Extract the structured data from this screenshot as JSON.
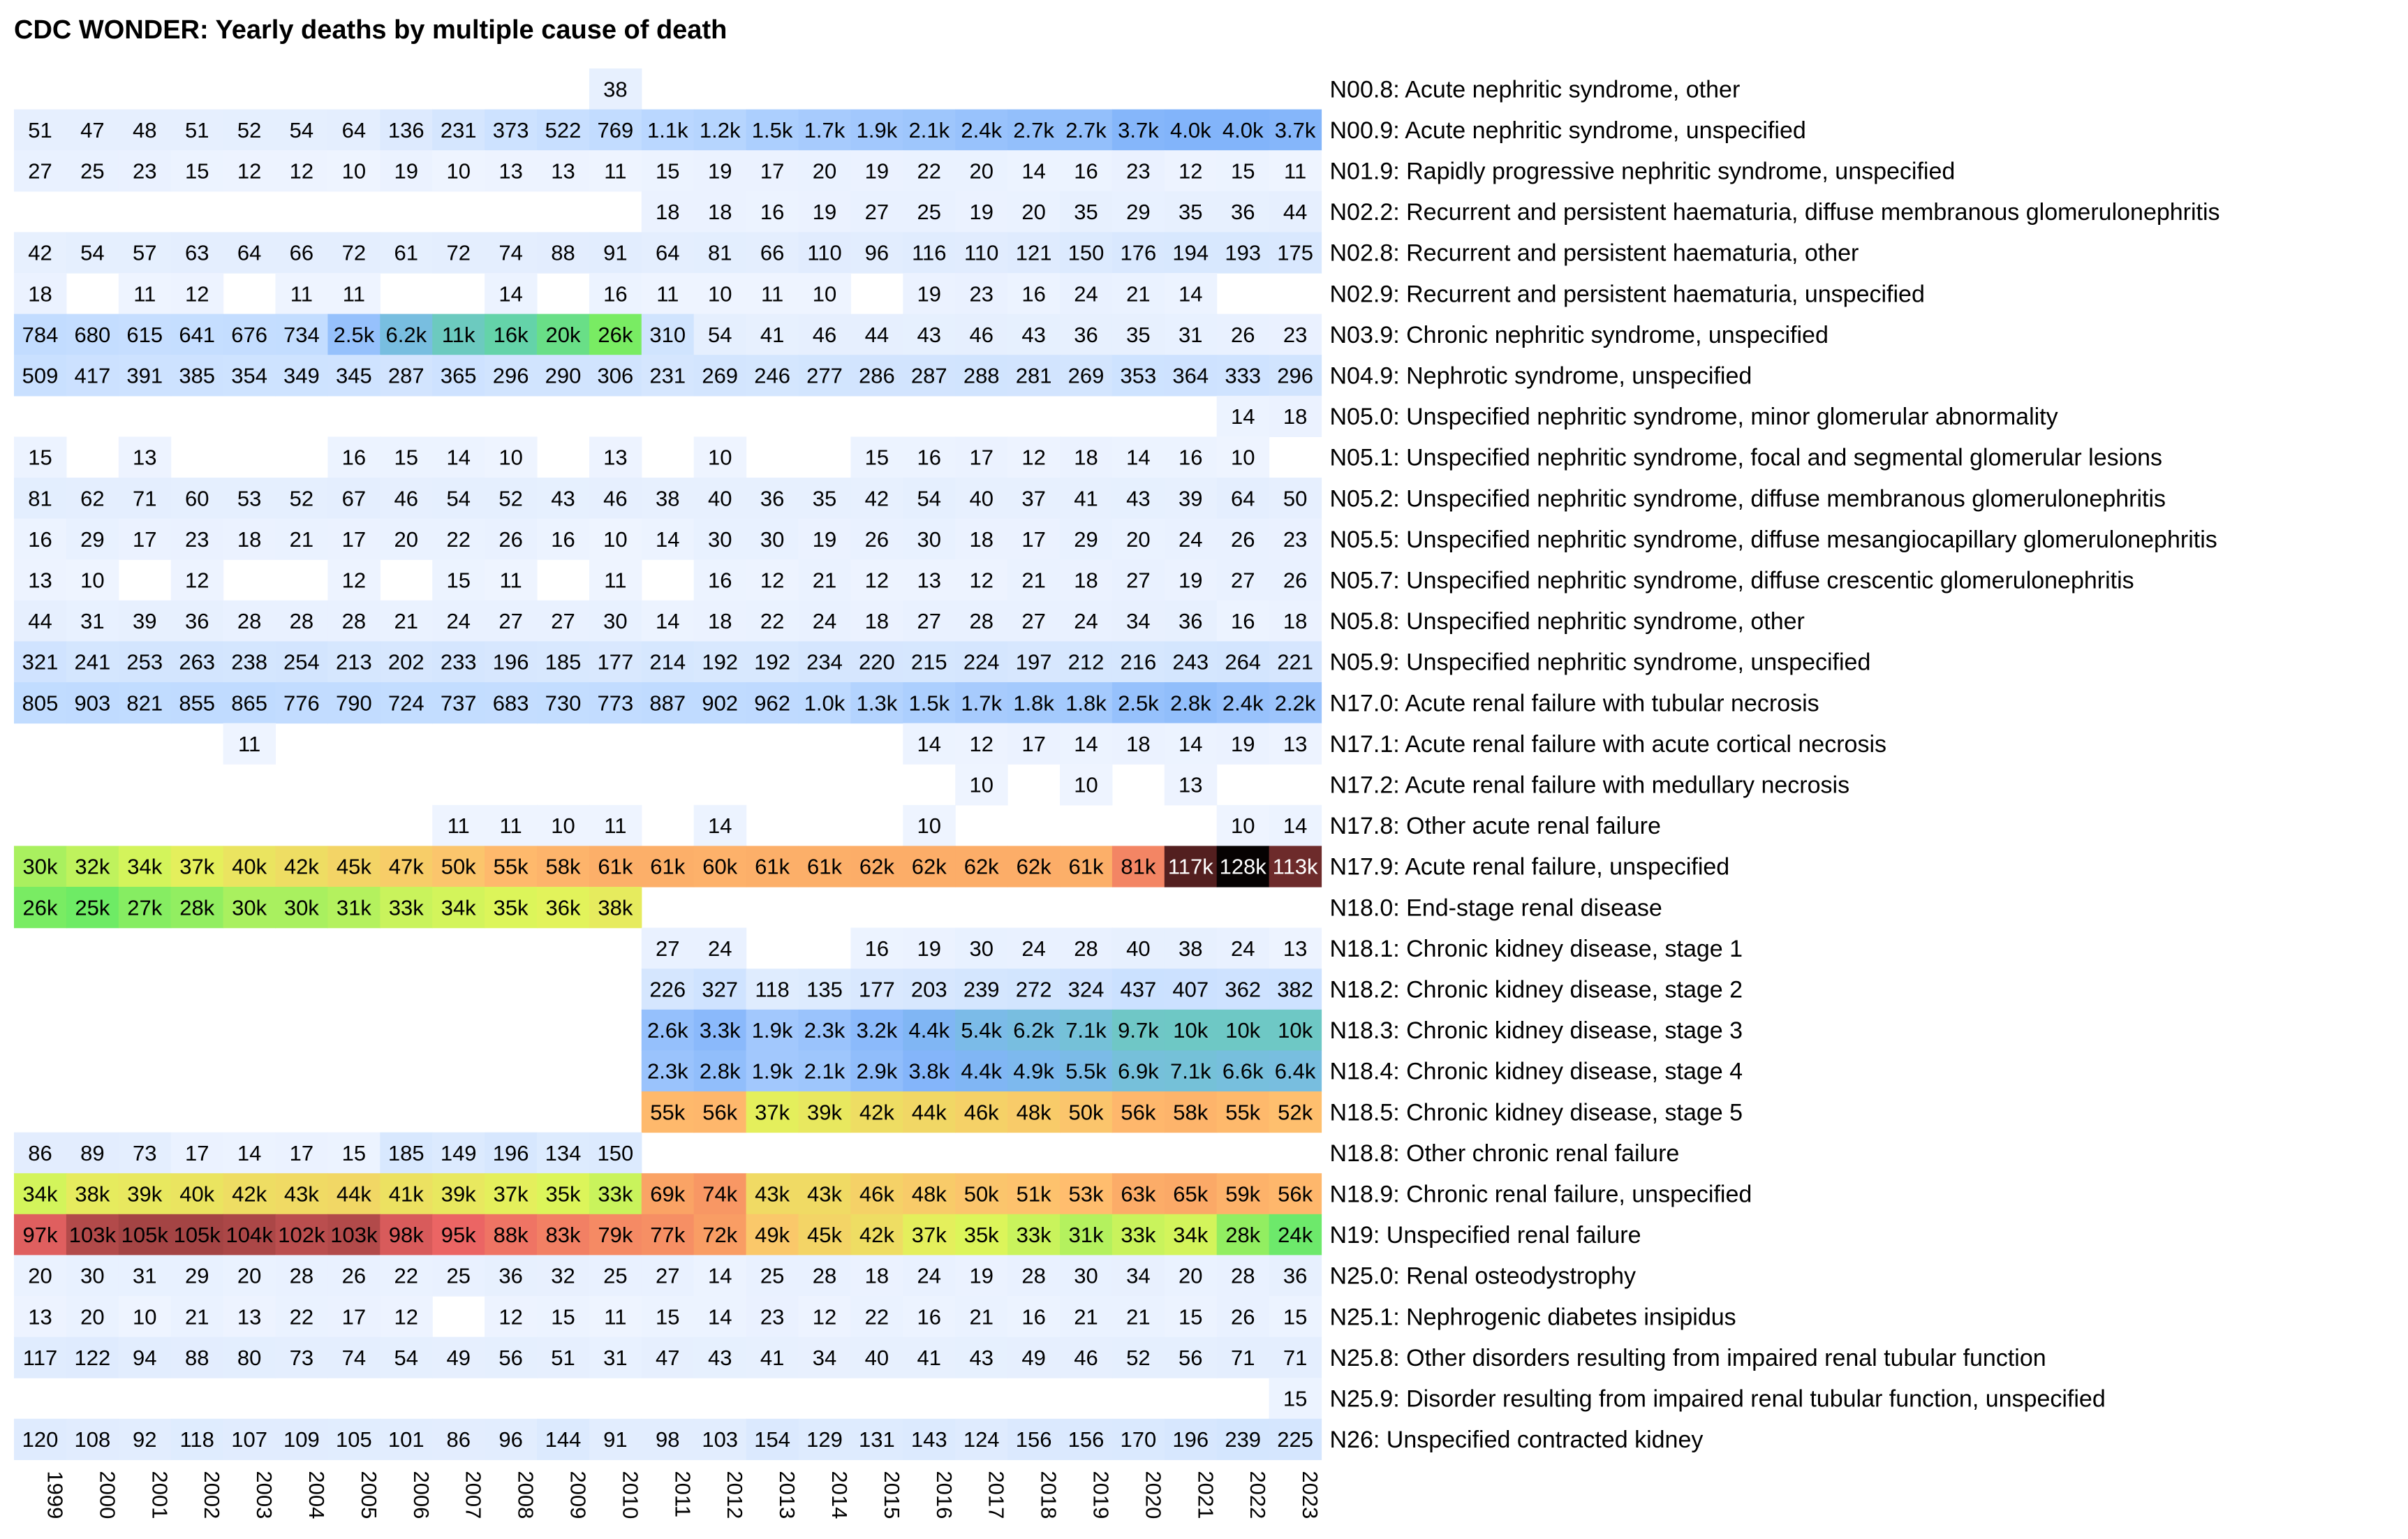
{
  "chart_data": {
    "type": "heatmap",
    "title": "CDC WONDER: Yearly deaths by multiple cause of death",
    "years": [
      1999,
      2000,
      2001,
      2002,
      2003,
      2004,
      2005,
      2006,
      2007,
      2008,
      2009,
      2010,
      2011,
      2012,
      2013,
      2014,
      2015,
      2016,
      2017,
      2018,
      2019,
      2020,
      2021,
      2022,
      2023
    ],
    "rows": [
      {
        "label": "N00.8: Acute nephritic syndrome, other",
        "values": [
          null,
          null,
          null,
          null,
          null,
          null,
          null,
          null,
          null,
          null,
          null,
          38,
          null,
          null,
          null,
          null,
          null,
          null,
          null,
          null,
          null,
          null,
          null,
          null,
          null
        ]
      },
      {
        "label": "N00.9: Acute nephritic syndrome, unspecified",
        "values": [
          51,
          47,
          48,
          51,
          52,
          54,
          64,
          136,
          231,
          373,
          522,
          769,
          1100,
          1200,
          1500,
          1700,
          1900,
          2100,
          2400,
          2700,
          2700,
          3700,
          4000,
          4000,
          3700
        ]
      },
      {
        "label": "N01.9: Rapidly progressive nephritic syndrome, unspecified",
        "values": [
          27,
          25,
          23,
          15,
          12,
          12,
          10,
          19,
          10,
          13,
          13,
          11,
          15,
          19,
          17,
          20,
          19,
          22,
          20,
          14,
          16,
          23,
          12,
          15,
          11
        ]
      },
      {
        "label": "N02.2: Recurrent and persistent haematuria, diffuse membranous glomerulonephritis",
        "values": [
          null,
          null,
          null,
          null,
          null,
          null,
          null,
          null,
          null,
          null,
          null,
          null,
          18,
          18,
          16,
          19,
          27,
          25,
          19,
          20,
          35,
          29,
          35,
          36,
          44
        ]
      },
      {
        "label": "N02.8: Recurrent and persistent haematuria, other",
        "values": [
          42,
          54,
          57,
          63,
          64,
          66,
          72,
          61,
          72,
          74,
          88,
          91,
          64,
          81,
          66,
          110,
          96,
          116,
          110,
          121,
          150,
          176,
          194,
          193,
          175
        ]
      },
      {
        "label": "N02.9: Recurrent and persistent haematuria, unspecified",
        "values": [
          18,
          null,
          11,
          12,
          null,
          11,
          11,
          null,
          null,
          14,
          null,
          16,
          11,
          10,
          11,
          10,
          null,
          19,
          23,
          16,
          24,
          21,
          14,
          null,
          null
        ]
      },
      {
        "label": "N03.9: Chronic nephritic syndrome, unspecified",
        "values": [
          784,
          680,
          615,
          641,
          676,
          734,
          2500,
          6200,
          11000,
          16000,
          20000,
          26000,
          310,
          54,
          41,
          46,
          44,
          43,
          46,
          43,
          36,
          35,
          31,
          26,
          23
        ]
      },
      {
        "label": "N04.9: Nephrotic syndrome, unspecified",
        "values": [
          509,
          417,
          391,
          385,
          354,
          349,
          345,
          287,
          365,
          296,
          290,
          306,
          231,
          269,
          246,
          277,
          286,
          287,
          288,
          281,
          269,
          353,
          364,
          333,
          296
        ]
      },
      {
        "label": "N05.0: Unspecified nephritic syndrome, minor glomerular abnormality",
        "values": [
          null,
          null,
          null,
          null,
          null,
          null,
          null,
          null,
          null,
          null,
          null,
          null,
          null,
          null,
          null,
          null,
          null,
          null,
          null,
          null,
          null,
          null,
          null,
          14,
          18
        ]
      },
      {
        "label": "N05.1: Unspecified nephritic syndrome, focal and segmental glomerular lesions",
        "values": [
          15,
          null,
          13,
          null,
          null,
          null,
          16,
          15,
          14,
          10,
          null,
          13,
          null,
          10,
          null,
          null,
          15,
          16,
          17,
          12,
          18,
          14,
          16,
          10,
          null
        ]
      },
      {
        "label": "N05.2: Unspecified nephritic syndrome, diffuse membranous glomerulonephritis",
        "values": [
          81,
          62,
          71,
          60,
          53,
          52,
          67,
          46,
          54,
          52,
          43,
          46,
          38,
          40,
          36,
          35,
          42,
          54,
          40,
          37,
          41,
          43,
          39,
          64,
          50
        ]
      },
      {
        "label": "N05.5: Unspecified nephritic syndrome, diffuse mesangiocapillary glomerulonephritis",
        "values": [
          16,
          29,
          17,
          23,
          18,
          21,
          17,
          20,
          22,
          26,
          16,
          10,
          14,
          30,
          30,
          19,
          26,
          30,
          18,
          17,
          29,
          20,
          24,
          26,
          23
        ]
      },
      {
        "label": "N05.7: Unspecified nephritic syndrome, diffuse crescentic glomerulonephritis",
        "values": [
          13,
          10,
          null,
          12,
          null,
          null,
          12,
          null,
          15,
          11,
          null,
          11,
          null,
          16,
          12,
          21,
          12,
          13,
          12,
          21,
          18,
          27,
          19,
          27,
          26
        ]
      },
      {
        "label": "N05.8: Unspecified nephritic syndrome, other",
        "values": [
          44,
          31,
          39,
          36,
          28,
          28,
          28,
          21,
          24,
          27,
          27,
          30,
          14,
          18,
          22,
          24,
          18,
          27,
          28,
          27,
          24,
          34,
          36,
          16,
          18
        ]
      },
      {
        "label": "N05.9: Unspecified nephritic syndrome, unspecified",
        "values": [
          321,
          241,
          253,
          263,
          238,
          254,
          213,
          202,
          233,
          196,
          185,
          177,
          214,
          192,
          192,
          234,
          220,
          215,
          224,
          197,
          212,
          216,
          243,
          264,
          221
        ]
      },
      {
        "label": "N17.0: Acute renal failure with tubular necrosis",
        "values": [
          805,
          903,
          821,
          855,
          865,
          776,
          790,
          724,
          737,
          683,
          730,
          773,
          887,
          902,
          962,
          1000,
          1300,
          1500,
          1700,
          1800,
          1800,
          2500,
          2800,
          2400,
          2200
        ]
      },
      {
        "label": "N17.1: Acute renal failure with acute cortical necrosis",
        "values": [
          null,
          null,
          null,
          null,
          11,
          null,
          null,
          null,
          null,
          null,
          null,
          null,
          null,
          null,
          null,
          null,
          null,
          14,
          12,
          17,
          14,
          18,
          14,
          19,
          13
        ]
      },
      {
        "label": "N17.2: Acute renal failure with medullary necrosis",
        "values": [
          null,
          null,
          null,
          null,
          null,
          null,
          null,
          null,
          null,
          null,
          null,
          null,
          null,
          null,
          null,
          null,
          null,
          null,
          10,
          null,
          10,
          null,
          13,
          null,
          null
        ]
      },
      {
        "label": "N17.8: Other acute renal failure",
        "values": [
          null,
          null,
          null,
          null,
          null,
          null,
          null,
          null,
          11,
          11,
          10,
          11,
          null,
          14,
          null,
          null,
          null,
          10,
          null,
          null,
          null,
          null,
          null,
          10,
          14
        ]
      },
      {
        "label": "N17.9: Acute renal failure, unspecified",
        "values": [
          30000,
          32000,
          34000,
          37000,
          40000,
          42000,
          45000,
          47000,
          50000,
          55000,
          58000,
          61000,
          61000,
          60000,
          61000,
          61000,
          62000,
          62000,
          62000,
          62000,
          61000,
          81000,
          117000,
          128000,
          113000
        ]
      },
      {
        "label": "N18.0: End-stage renal disease",
        "values": [
          26000,
          25000,
          27000,
          28000,
          30000,
          30000,
          31000,
          33000,
          34000,
          35000,
          36000,
          38000,
          null,
          null,
          null,
          null,
          null,
          null,
          null,
          null,
          null,
          null,
          null,
          null,
          null
        ]
      },
      {
        "label": "N18.1: Chronic kidney disease, stage 1",
        "values": [
          null,
          null,
          null,
          null,
          null,
          null,
          null,
          null,
          null,
          null,
          null,
          null,
          27,
          24,
          null,
          null,
          16,
          19,
          30,
          24,
          28,
          40,
          38,
          24,
          13
        ]
      },
      {
        "label": "N18.2: Chronic kidney disease, stage 2",
        "values": [
          null,
          null,
          null,
          null,
          null,
          null,
          null,
          null,
          null,
          null,
          null,
          null,
          226,
          327,
          118,
          135,
          177,
          203,
          239,
          272,
          324,
          437,
          407,
          362,
          382
        ]
      },
      {
        "label": "N18.3: Chronic kidney disease, stage 3",
        "values": [
          null,
          null,
          null,
          null,
          null,
          null,
          null,
          null,
          null,
          null,
          null,
          null,
          2600,
          3300,
          1900,
          2300,
          3200,
          4400,
          5400,
          6200,
          7100,
          9700,
          10000,
          10000,
          10000
        ]
      },
      {
        "label": "N18.4: Chronic kidney disease, stage 4",
        "values": [
          null,
          null,
          null,
          null,
          null,
          null,
          null,
          null,
          null,
          null,
          null,
          null,
          2300,
          2800,
          1900,
          2100,
          2900,
          3800,
          4400,
          4900,
          5500,
          6900,
          7100,
          6600,
          6400
        ]
      },
      {
        "label": "N18.5: Chronic kidney disease, stage 5",
        "values": [
          null,
          null,
          null,
          null,
          null,
          null,
          null,
          null,
          null,
          null,
          null,
          null,
          55000,
          56000,
          37000,
          39000,
          42000,
          44000,
          46000,
          48000,
          50000,
          56000,
          58000,
          55000,
          52000
        ]
      },
      {
        "label": "N18.8: Other chronic renal failure",
        "values": [
          86,
          89,
          73,
          17,
          14,
          17,
          15,
          185,
          149,
          196,
          134,
          150,
          null,
          null,
          null,
          null,
          null,
          null,
          null,
          null,
          null,
          null,
          null,
          null,
          null
        ]
      },
      {
        "label": "N18.9: Chronic renal failure, unspecified",
        "values": [
          34000,
          38000,
          39000,
          40000,
          42000,
          43000,
          44000,
          41000,
          39000,
          37000,
          35000,
          33000,
          69000,
          74000,
          43000,
          43000,
          46000,
          48000,
          50000,
          51000,
          53000,
          63000,
          65000,
          59000,
          56000
        ]
      },
      {
        "label": "N19: Unspecified renal failure",
        "values": [
          97000,
          103000,
          105000,
          105000,
          104000,
          102000,
          103000,
          98000,
          95000,
          88000,
          83000,
          79000,
          77000,
          72000,
          49000,
          45000,
          42000,
          37000,
          35000,
          33000,
          31000,
          33000,
          34000,
          28000,
          24000
        ]
      },
      {
        "label": "N25.0: Renal osteodystrophy",
        "values": [
          20,
          30,
          31,
          29,
          20,
          28,
          26,
          22,
          25,
          36,
          32,
          25,
          27,
          14,
          25,
          28,
          18,
          24,
          19,
          28,
          30,
          34,
          20,
          28,
          36
        ]
      },
      {
        "label": "N25.1: Nephrogenic diabetes insipidus",
        "values": [
          13,
          20,
          10,
          21,
          13,
          22,
          17,
          12,
          null,
          12,
          15,
          11,
          15,
          14,
          23,
          12,
          22,
          16,
          21,
          16,
          21,
          21,
          15,
          26,
          15
        ]
      },
      {
        "label": "N25.8: Other disorders resulting from impaired renal tubular function",
        "values": [
          117,
          122,
          94,
          88,
          80,
          73,
          74,
          54,
          49,
          56,
          51,
          31,
          47,
          43,
          41,
          34,
          40,
          41,
          43,
          49,
          46,
          52,
          56,
          71,
          71
        ]
      },
      {
        "label": "N25.9: Disorder resulting from impaired renal tubular function, unspecified",
        "values": [
          null,
          null,
          null,
          null,
          null,
          null,
          null,
          null,
          null,
          null,
          null,
          null,
          null,
          null,
          null,
          null,
          null,
          null,
          null,
          null,
          null,
          null,
          null,
          null,
          15
        ]
      },
      {
        "label": "N26: Unspecified contracted kidney",
        "values": [
          120,
          108,
          92,
          118,
          107,
          109,
          105,
          101,
          86,
          96,
          144,
          91,
          98,
          103,
          154,
          129,
          131,
          143,
          124,
          156,
          156,
          170,
          196,
          239,
          225
        ]
      }
    ]
  }
}
